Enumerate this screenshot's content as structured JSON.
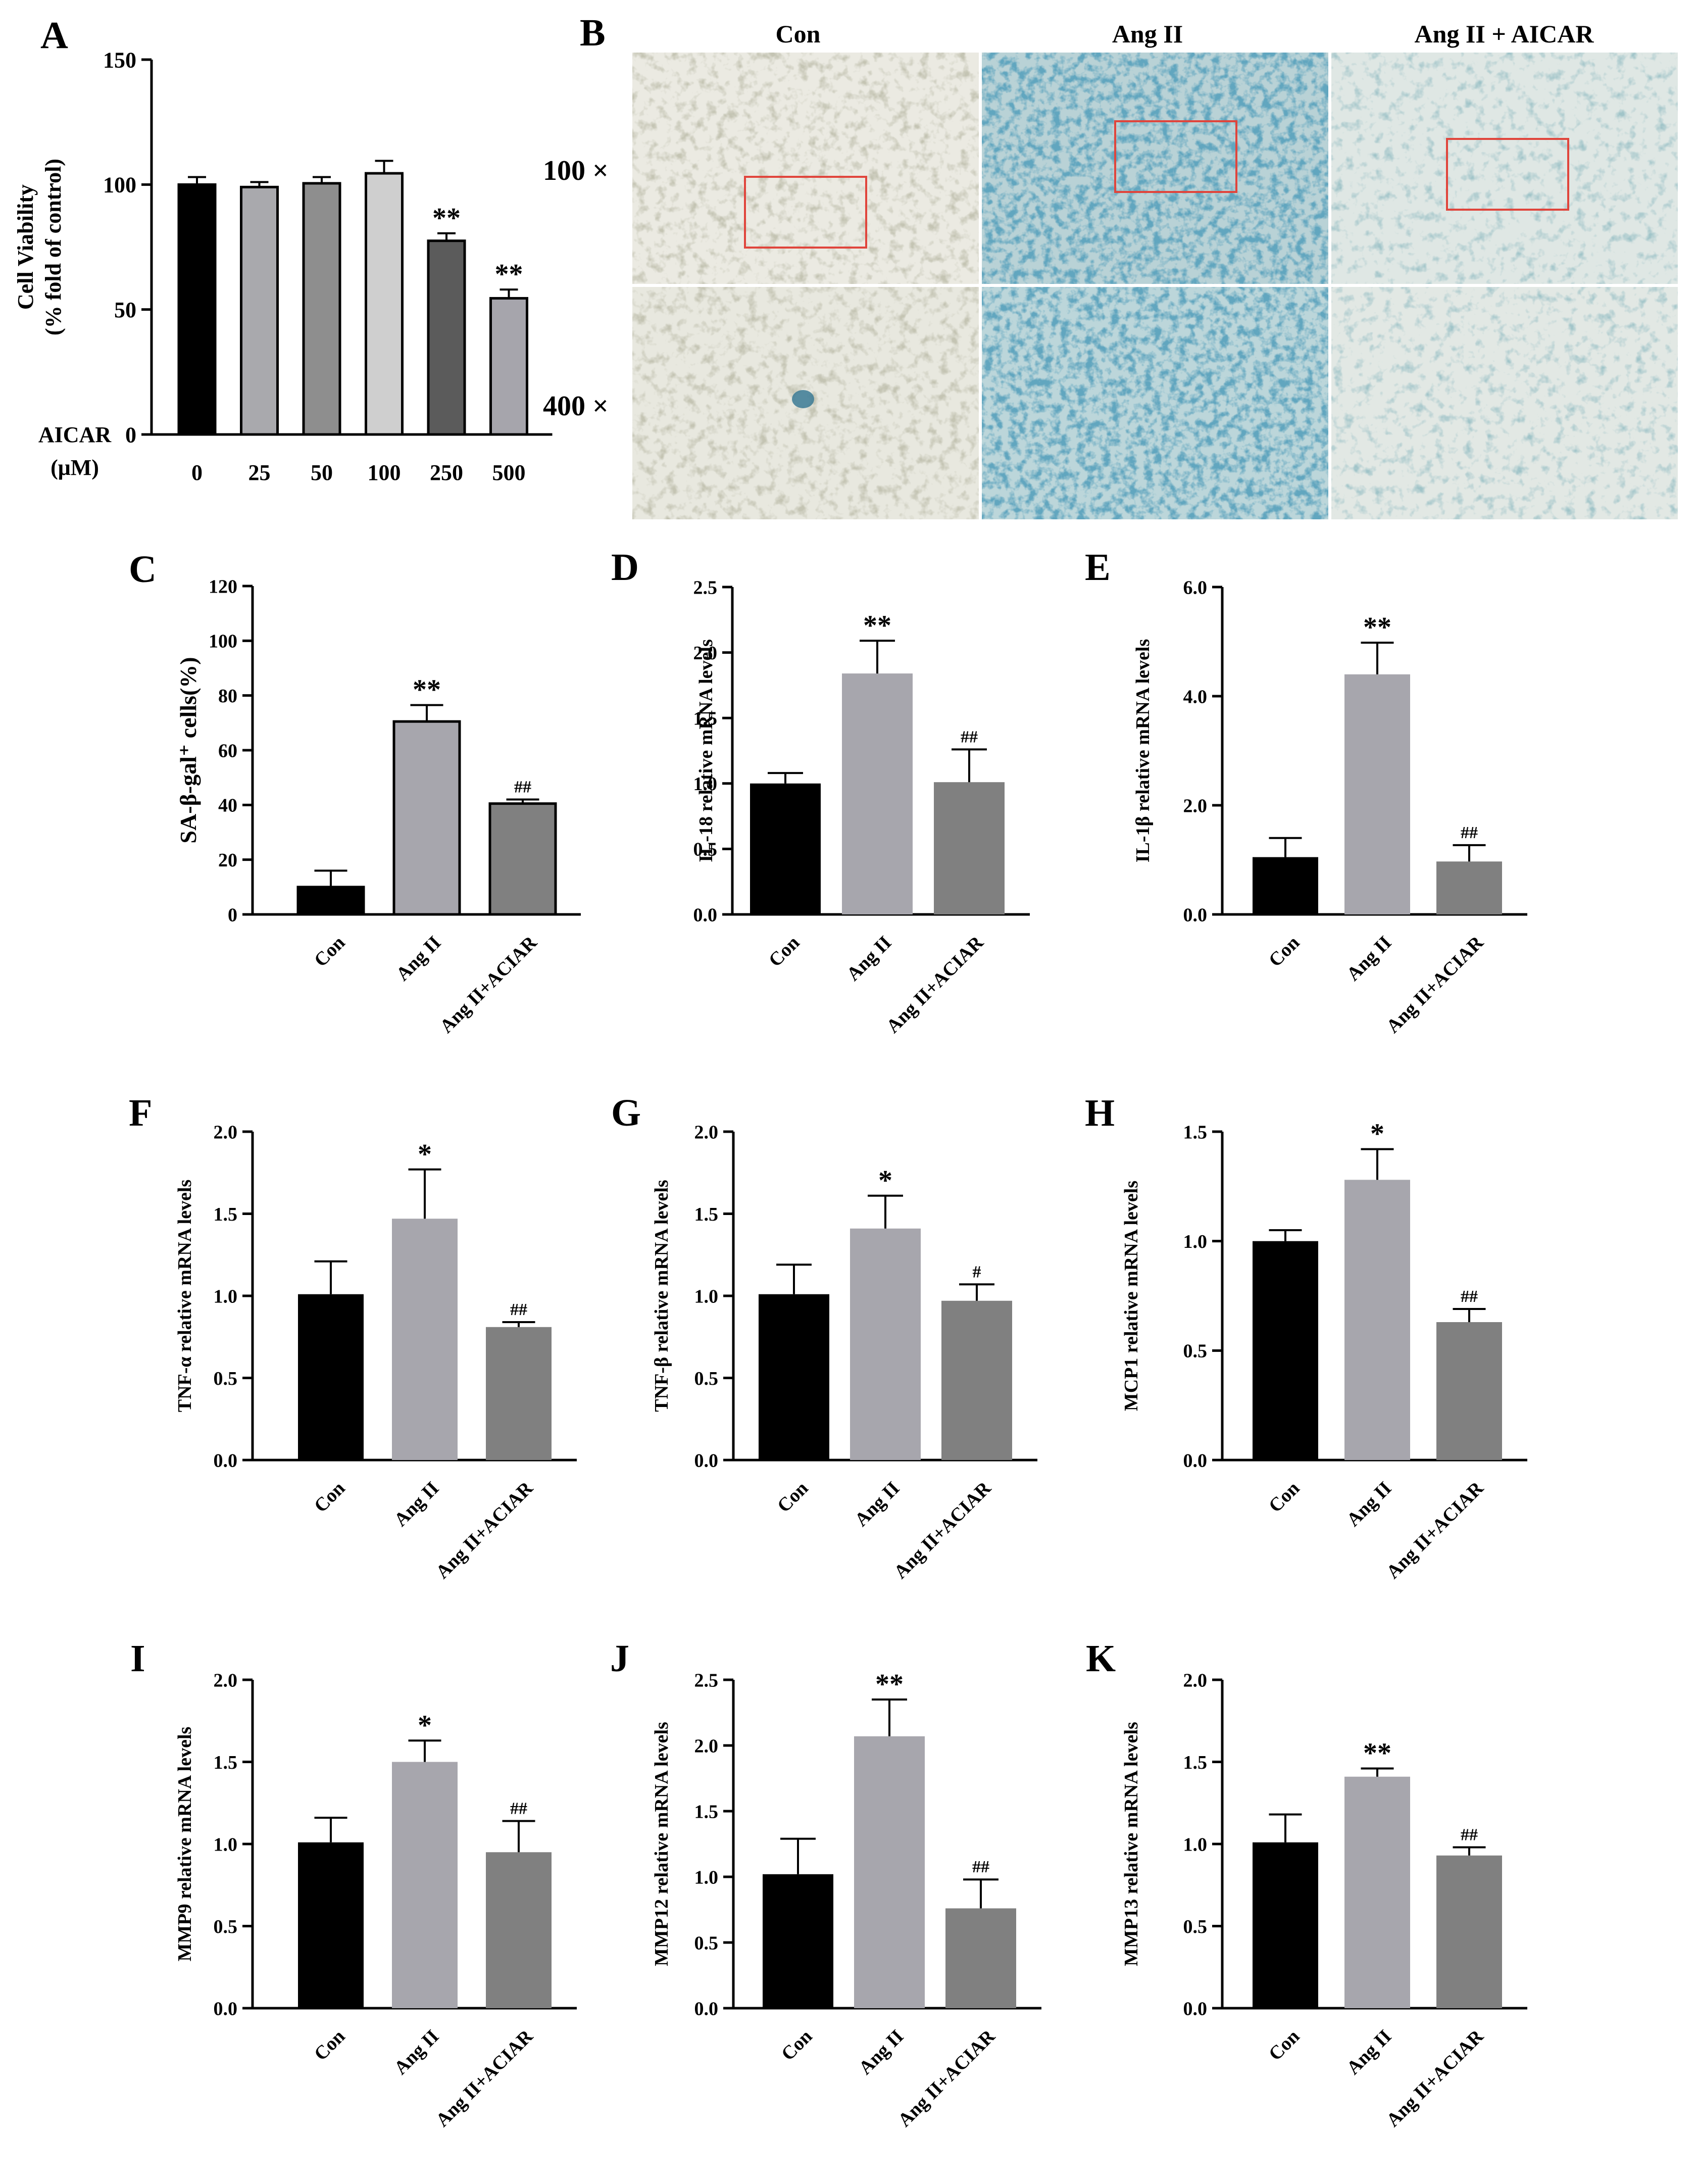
{
  "colors": {
    "black": "#000000",
    "light_gray": "#a7a6ad",
    "dark_gray": "#808080",
    "panel_a": [
      "#000000",
      "#a9a9ad",
      "#8e8e8e",
      "#cfcfcf",
      "#5b5b5b",
      "#a6a5ac"
    ],
    "micrograph_bg_con": "#ebeae2",
    "micrograph_bg_ang": "#b9d2d6",
    "micrograph_bg_aicar": "#dfe7e4",
    "stain_blue": "#2f7390",
    "roi_box": "#e0453c"
  },
  "panel_b": {
    "letter": "B",
    "columns": [
      "Con",
      "Ang II",
      "Ang II + AICAR"
    ],
    "rows": [
      "100 ×",
      "400 ×"
    ]
  },
  "chart_data": [
    {
      "panel": "A",
      "type": "bar",
      "categories": [
        "0",
        "25",
        "50",
        "100",
        "250",
        "500"
      ],
      "values": [
        100,
        99,
        100.5,
        104.5,
        77.5,
        54.5
      ],
      "errors": [
        3,
        2,
        2.5,
        5,
        3,
        3.5
      ],
      "significance": [
        "",
        "",
        "",
        "",
        "**",
        "**"
      ],
      "ylabel": [
        "Cell Viability",
        "(% fold of control)"
      ],
      "xlabel": [
        "AICAR",
        "(μM)"
      ],
      "ylim": [
        0,
        150
      ],
      "yticks": [
        0,
        50,
        100,
        150
      ],
      "tick_decimals": 0,
      "rotate_x": false
    },
    {
      "panel": "C",
      "type": "bar",
      "categories": [
        "Con",
        "Ang II",
        "Ang II+ACIAR"
      ],
      "values": [
        10,
        70.5,
        40.5
      ],
      "errors": [
        6,
        6,
        1.5
      ],
      "significance": [
        "",
        "**",
        "##"
      ],
      "ylabel": [
        "SA-β-gal⁺ cells(%)"
      ],
      "ylim": [
        0,
        120
      ],
      "yticks": [
        0,
        20,
        40,
        60,
        80,
        100,
        120
      ],
      "tick_decimals": 0,
      "rotate_x": true
    },
    {
      "panel": "D",
      "type": "bar",
      "categories": [
        "Con",
        "Ang II",
        "Ang II+ACIAR"
      ],
      "values": [
        1.0,
        1.84,
        1.01
      ],
      "errors": [
        0.08,
        0.25,
        0.25
      ],
      "significance": [
        "",
        "**",
        "##"
      ],
      "ylabel": [
        "IL-18 relative mRNA levels"
      ],
      "ylim": [
        0,
        2.5
      ],
      "yticks": [
        0,
        0.5,
        1.0,
        1.5,
        2.0,
        2.5
      ],
      "tick_decimals": 1,
      "rotate_x": true
    },
    {
      "panel": "E",
      "type": "bar",
      "categories": [
        "Con",
        "Ang II",
        "Ang II+ACIAR"
      ],
      "values": [
        1.05,
        4.4,
        0.97
      ],
      "errors": [
        0.35,
        0.58,
        0.3
      ],
      "significance": [
        "",
        "**",
        "##"
      ],
      "ylabel": [
        "IL-1β relative mRNA levels"
      ],
      "ylim": [
        0,
        6
      ],
      "yticks": [
        0,
        2,
        4,
        6
      ],
      "tick_decimals": 1,
      "rotate_x": true
    },
    {
      "panel": "F",
      "type": "bar",
      "categories": [
        "Con",
        "Ang II",
        "Ang II+ACIAR"
      ],
      "values": [
        1.01,
        1.47,
        0.81
      ],
      "errors": [
        0.2,
        0.3,
        0.03
      ],
      "significance": [
        "",
        "*",
        "##"
      ],
      "ylabel": [
        "TNF-α relative mRNA levels"
      ],
      "ylim": [
        0,
        2
      ],
      "yticks": [
        0,
        0.5,
        1.0,
        1.5,
        2.0
      ],
      "tick_decimals": 1,
      "rotate_x": true
    },
    {
      "panel": "G",
      "type": "bar",
      "categories": [
        "Con",
        "Ang II",
        "Ang II+ACIAR"
      ],
      "values": [
        1.01,
        1.41,
        0.97
      ],
      "errors": [
        0.18,
        0.2,
        0.1
      ],
      "significance": [
        "",
        "*",
        "#"
      ],
      "ylabel": [
        "TNF-β relative mRNA levels"
      ],
      "ylim": [
        0,
        2
      ],
      "yticks": [
        0,
        0.5,
        1.0,
        1.5,
        2.0
      ],
      "tick_decimals": 1,
      "rotate_x": true
    },
    {
      "panel": "H",
      "type": "bar",
      "categories": [
        "Con",
        "Ang II",
        "Ang II+ACIAR"
      ],
      "values": [
        1.0,
        1.28,
        0.63
      ],
      "errors": [
        0.05,
        0.14,
        0.06
      ],
      "significance": [
        "",
        "*",
        "##"
      ],
      "ylabel": [
        "MCP1 relative mRNA levels"
      ],
      "ylim": [
        0,
        1.5
      ],
      "yticks": [
        0,
        0.5,
        1.0,
        1.5
      ],
      "tick_decimals": 1,
      "rotate_x": true
    },
    {
      "panel": "I",
      "type": "bar",
      "categories": [
        "Con",
        "Ang II",
        "Ang II+ACIAR"
      ],
      "values": [
        1.01,
        1.5,
        0.95
      ],
      "errors": [
        0.15,
        0.13,
        0.19
      ],
      "significance": [
        "",
        "*",
        "##"
      ],
      "ylabel": [
        "MMP9 relative mRNA levels"
      ],
      "ylim": [
        0,
        2
      ],
      "yticks": [
        0,
        0.5,
        1.0,
        1.5,
        2.0
      ],
      "tick_decimals": 1,
      "rotate_x": true
    },
    {
      "panel": "J",
      "type": "bar",
      "categories": [
        "Con",
        "Ang II",
        "Ang II+ACIAR"
      ],
      "values": [
        1.02,
        2.07,
        0.76
      ],
      "errors": [
        0.27,
        0.28,
        0.22
      ],
      "significance": [
        "",
        "**",
        "##"
      ],
      "ylabel": [
        "MMP12 relative mRNA levels"
      ],
      "ylim": [
        0,
        2.5
      ],
      "yticks": [
        0,
        0.5,
        1.0,
        1.5,
        2.0,
        2.5
      ],
      "tick_decimals": 1,
      "rotate_x": true
    },
    {
      "panel": "K",
      "type": "bar",
      "categories": [
        "Con",
        "Ang II",
        "Ang II+ACIAR"
      ],
      "values": [
        1.01,
        1.41,
        0.93
      ],
      "errors": [
        0.17,
        0.05,
        0.05
      ],
      "significance": [
        "",
        "**",
        "##"
      ],
      "ylabel": [
        "MMP13 relative mRNA levels"
      ],
      "ylim": [
        0,
        2
      ],
      "yticks": [
        0,
        0.5,
        1.0,
        1.5,
        2.0
      ],
      "tick_decimals": 1,
      "rotate_x": true
    }
  ]
}
